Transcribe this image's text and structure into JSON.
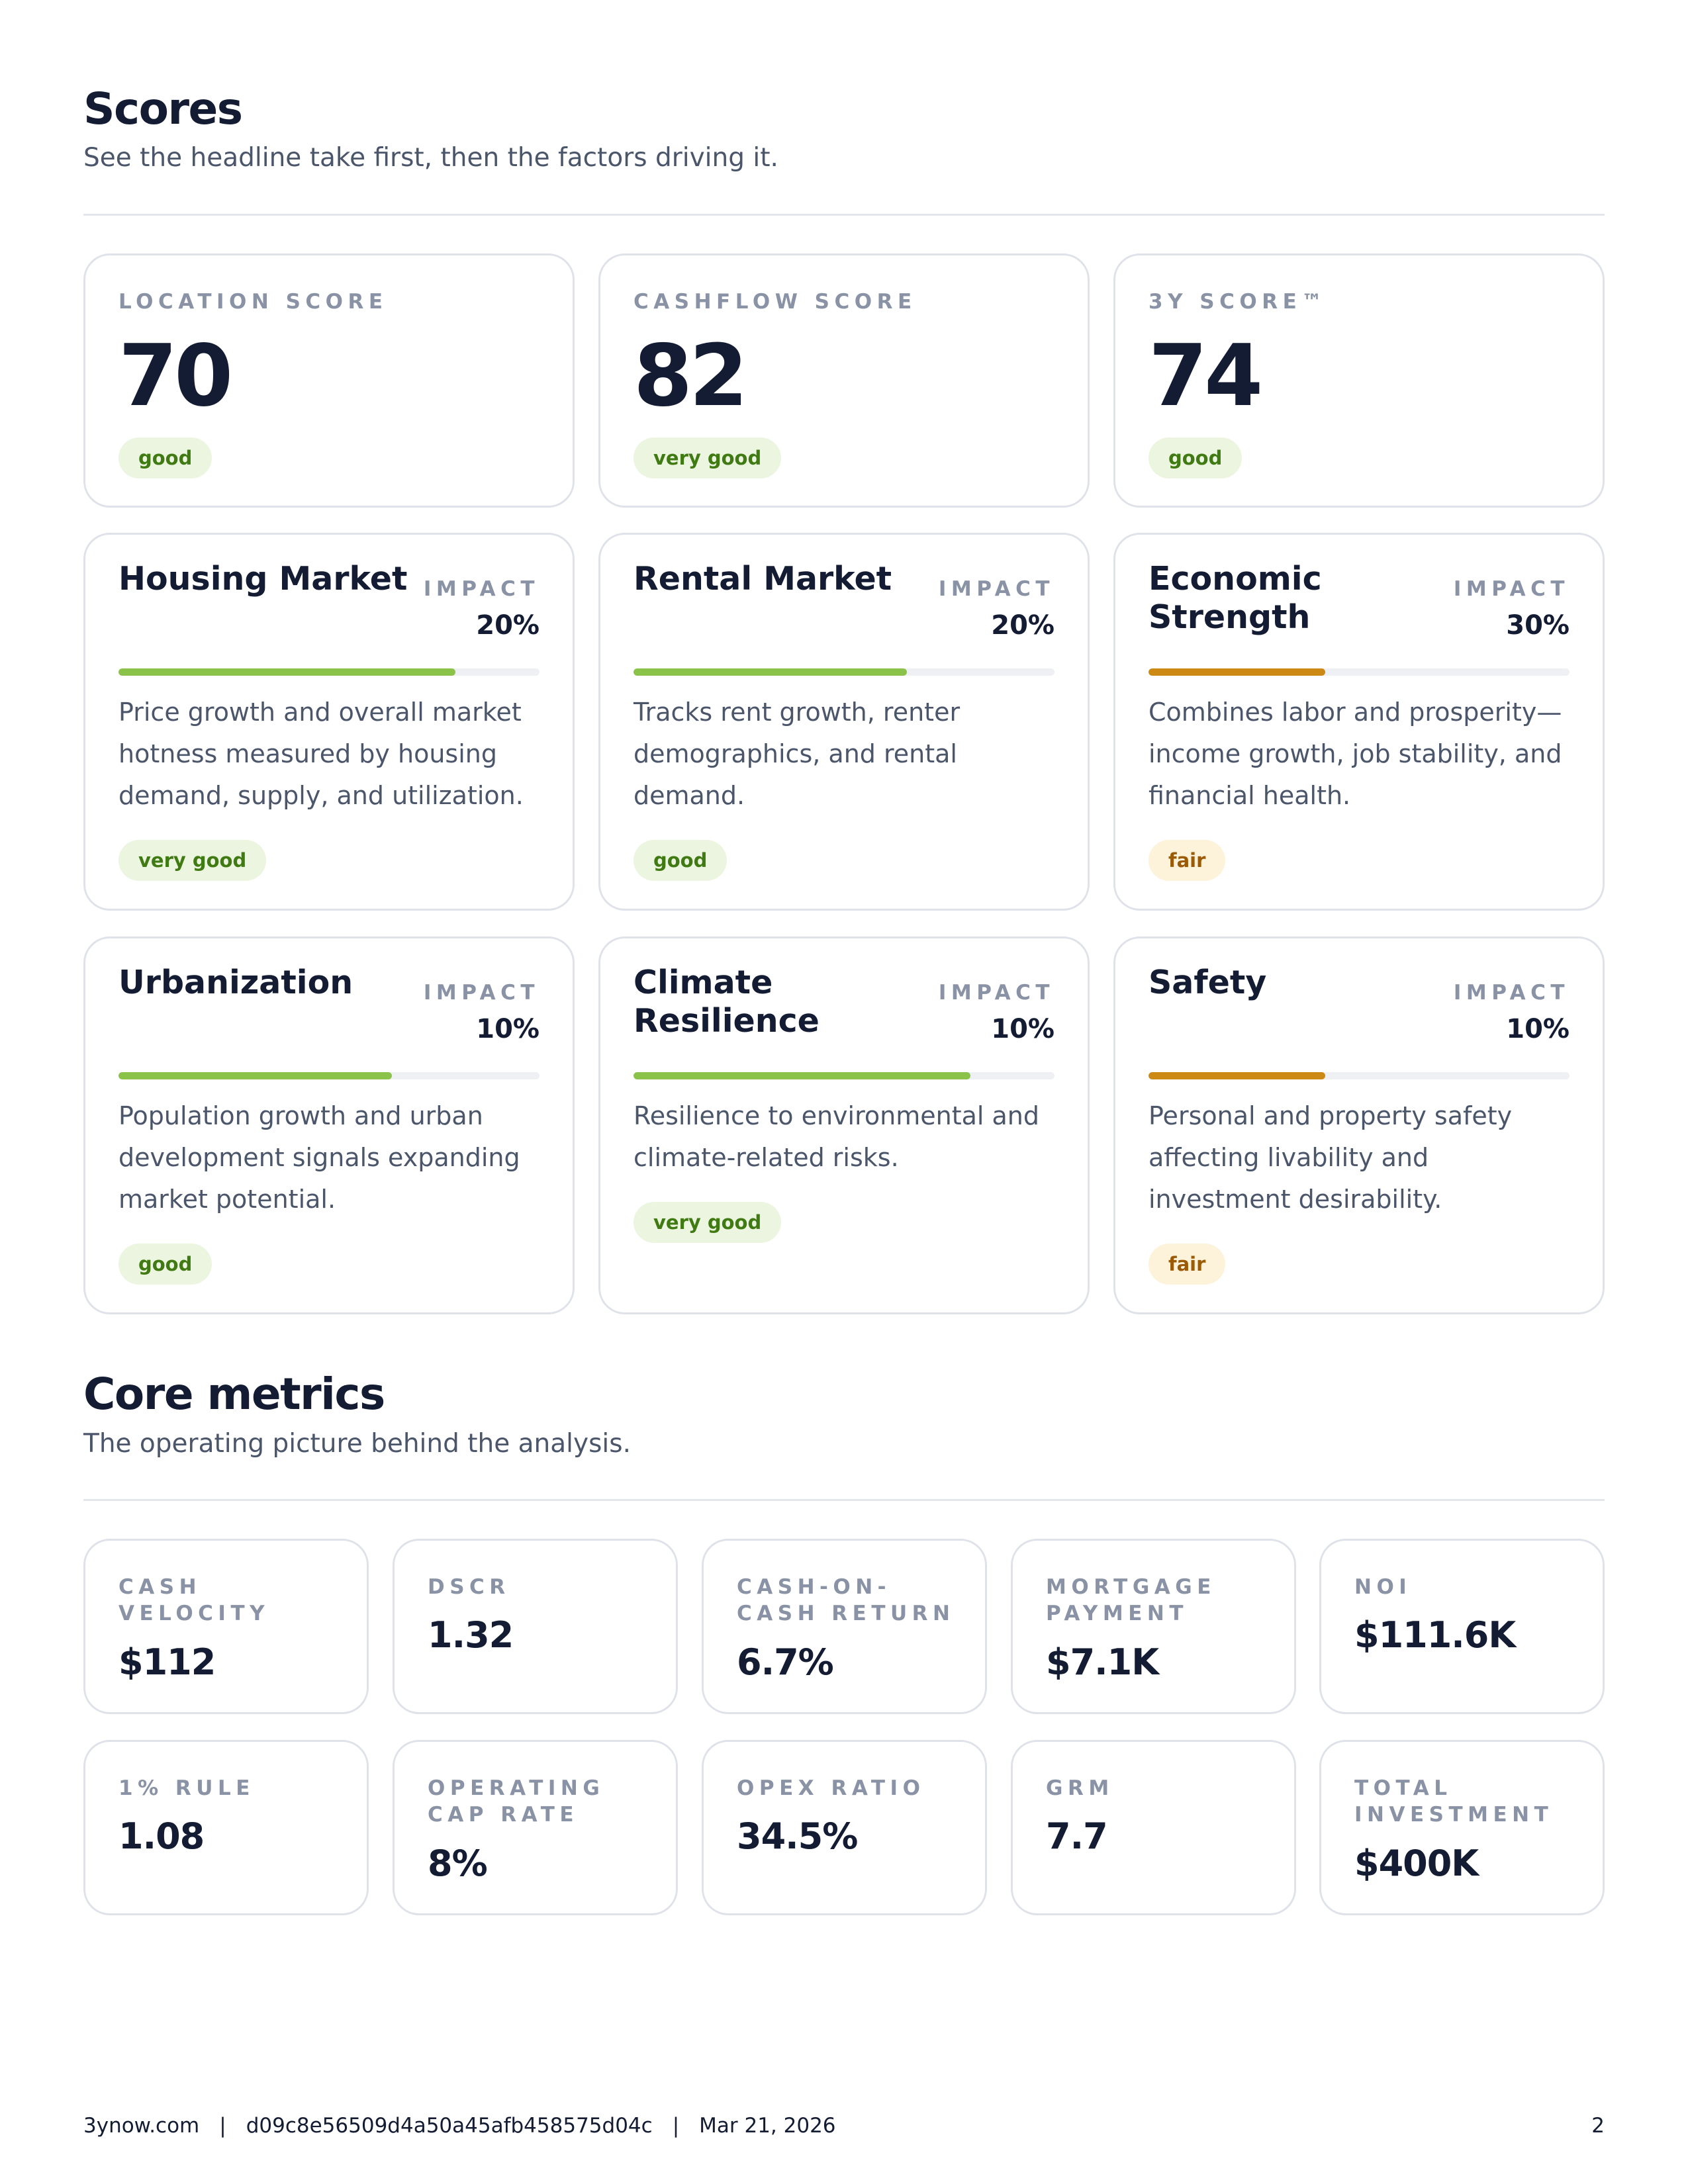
{
  "scores": {
    "title": "Scores",
    "subtitle": "See the headline take first, then the factors driving it.",
    "cards": [
      {
        "label": "LOCATION SCORE",
        "value": "70",
        "rating": "good"
      },
      {
        "label": "CASHFLOW SCORE",
        "value": "82",
        "rating": "very good"
      },
      {
        "label": "3Y SCORE™",
        "value": "74",
        "rating": "good"
      }
    ],
    "impact_label": "IMPACT",
    "factors": [
      {
        "title": "Housing Market",
        "impact": "20%",
        "fill_fraction": 0.8,
        "bar_color": "#8bc34a",
        "description": "Price growth and overall market hotness measured by housing demand, supply, and utilization.",
        "rating": "very good"
      },
      {
        "title": "Rental Market",
        "impact": "20%",
        "fill_fraction": 0.65,
        "bar_color": "#8bc34a",
        "description": "Tracks rent growth, renter demographics, and rental demand.",
        "rating": "good"
      },
      {
        "title": "Economic Strength",
        "impact": "30%",
        "fill_fraction": 0.42,
        "bar_color": "#cc8a14",
        "description": "Combines labor and prosperity—income growth, job stability, and financial health.",
        "rating": "fair"
      },
      {
        "title": "Urbanization",
        "impact": "10%",
        "fill_fraction": 0.65,
        "bar_color": "#8bc34a",
        "description": "Population growth and urban development signals expanding market potential.",
        "rating": "good"
      },
      {
        "title": "Climate Resilience",
        "impact": "10%",
        "fill_fraction": 0.8,
        "bar_color": "#8bc34a",
        "description": "Resilience to environmental and climate-related risks.",
        "rating": "very good"
      },
      {
        "title": "Safety",
        "impact": "10%",
        "fill_fraction": 0.42,
        "bar_color": "#cc8a14",
        "description": "Personal and property safety affecting livability and investment desirability.",
        "rating": "fair"
      }
    ],
    "rating_colors": {
      "very good": "#3f7a12",
      "good": "#3f7a12",
      "fair": "#9a5a06"
    }
  },
  "core_metrics": {
    "title": "Core metrics",
    "subtitle": "The operating picture behind the analysis.",
    "items": [
      {
        "label": "CASH VELOCITY",
        "value": "$112"
      },
      {
        "label": "DSCR",
        "value": "1.32"
      },
      {
        "label": "CASH-ON-CASH RETURN",
        "value": "6.7%"
      },
      {
        "label": "MORTGAGE PAYMENT",
        "value": "$7.1K"
      },
      {
        "label": "NOI",
        "value": "$111.6K"
      },
      {
        "label": "1% RULE",
        "value": "1.08"
      },
      {
        "label": "OPERATING CAP RATE",
        "value": "8%"
      },
      {
        "label": "OPEX RATIO",
        "value": "34.5%"
      },
      {
        "label": "GRM",
        "value": "7.7"
      },
      {
        "label": "TOTAL INVESTMENT",
        "value": "$400K"
      }
    ]
  },
  "footer": {
    "site": "3ynow.com",
    "id": "d09c8e56509d4a50a45afb458575d04c",
    "date": "Mar 21, 2026",
    "page": "2"
  }
}
